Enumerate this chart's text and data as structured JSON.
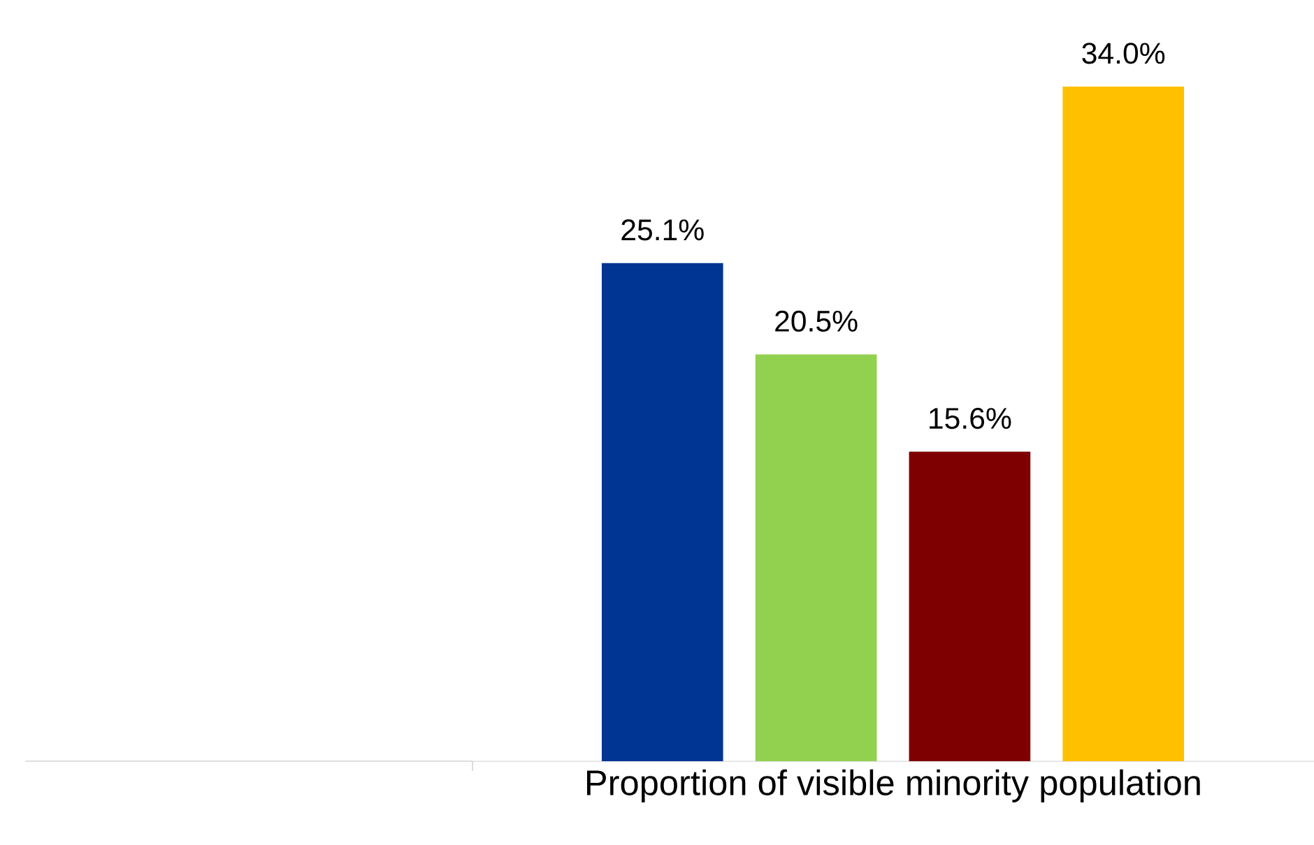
{
  "chart_data": {
    "type": "bar",
    "categories": [
      null,
      null,
      null,
      null
    ],
    "xlabel": "Proportion of visible minority population",
    "values": [
      25.1,
      20.5,
      15.6,
      34.0
    ],
    "colors": [
      "#003594",
      "#92d050",
      "#7f0000",
      "#ffc000"
    ],
    "value_labels": [
      "25.1%",
      "20.5%",
      "15.6%",
      "34.0%"
    ]
  }
}
